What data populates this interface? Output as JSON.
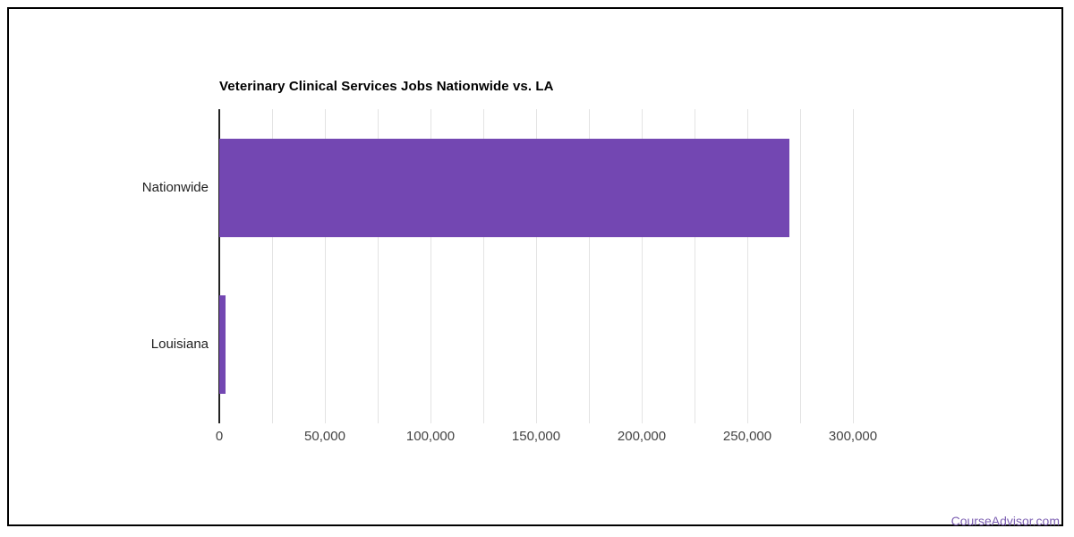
{
  "chart_data": {
    "type": "bar",
    "orientation": "horizontal",
    "title": "Veterinary Clinical Services Jobs Nationwide vs. LA",
    "categories": [
      "Nationwide",
      "Louisiana"
    ],
    "values": [
      270000,
      2900
    ],
    "xlabel": "",
    "ylabel": "",
    "xlim": [
      0,
      300000
    ],
    "x_major_ticks": [
      0,
      50000,
      100000,
      150000,
      200000,
      250000,
      300000
    ],
    "x_major_tick_labels": [
      "0",
      "50,000",
      "100,000",
      "150,000",
      "200,000",
      "250,000",
      "300,000"
    ],
    "x_minor_interval": 25000,
    "grid": "vertical gridlines every 25,000",
    "legend": "none",
    "bar_color": "#7347b2"
  },
  "footer": {
    "link_label": "CourseAdvisor.com",
    "link_color": "#7e61b3"
  },
  "colors": {
    "bar": "#7347b2",
    "gridline": "#e3e3e3",
    "axis": "#222222",
    "tick_label": "#444444",
    "category_label": "#1f1f1f",
    "title": "#000000",
    "border": "#000000",
    "background": "#ffffff",
    "link": "#7e61b3"
  }
}
